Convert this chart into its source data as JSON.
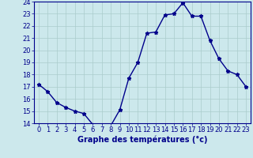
{
  "x": [
    0,
    1,
    2,
    3,
    4,
    5,
    6,
    7,
    8,
    9,
    10,
    11,
    12,
    13,
    14,
    15,
    16,
    17,
    18,
    19,
    20,
    21,
    22,
    23
  ],
  "y": [
    17.2,
    16.6,
    15.7,
    15.3,
    15.0,
    14.8,
    13.9,
    13.8,
    13.8,
    15.1,
    17.7,
    19.0,
    21.4,
    21.5,
    22.9,
    23.0,
    23.9,
    22.8,
    22.8,
    20.8,
    19.3,
    18.3,
    18.0,
    17.0
  ],
  "bg_color": "#cce8ec",
  "line_color": "#00008b",
  "marker_color": "#00008b",
  "grid_color": "#aacccc",
  "xlabel": "Graphe des températures (°c)",
  "xlabel_color": "#00008b",
  "ylim": [
    14,
    24
  ],
  "xlim": [
    -0.5,
    23.5
  ],
  "yticks": [
    14,
    15,
    16,
    17,
    18,
    19,
    20,
    21,
    22,
    23,
    24
  ],
  "xticks": [
    0,
    1,
    2,
    3,
    4,
    5,
    6,
    7,
    8,
    9,
    10,
    11,
    12,
    13,
    14,
    15,
    16,
    17,
    18,
    19,
    20,
    21,
    22,
    23
  ],
  "tick_color": "#00008b",
  "axis_bg": "#cce8ec",
  "tick_fontsize": 6.0,
  "xlabel_fontsize": 7.0,
  "linewidth": 1.0,
  "markersize": 3.5
}
